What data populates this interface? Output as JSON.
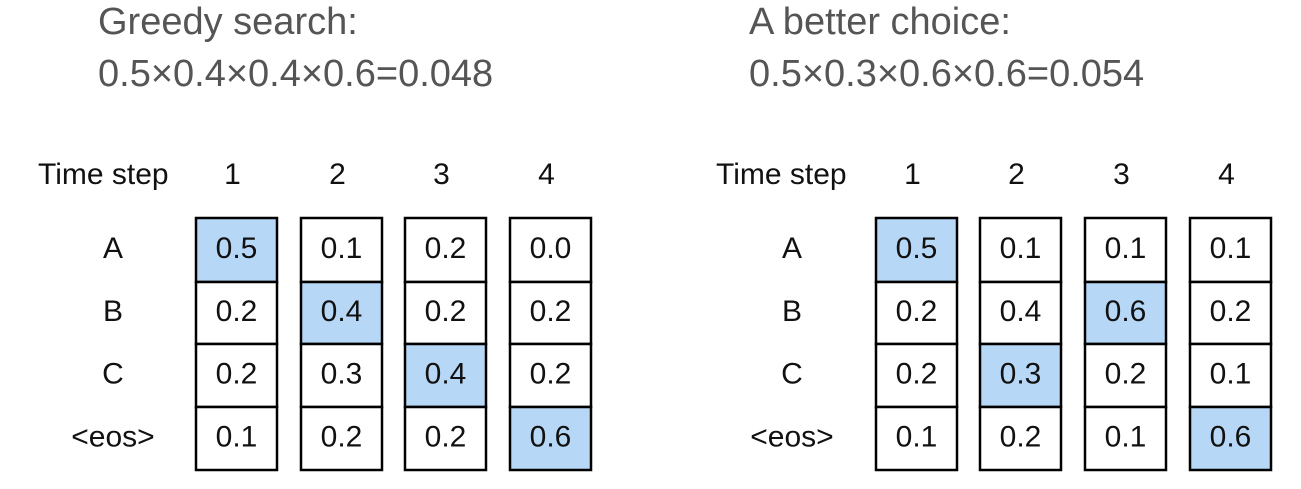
{
  "highlight_color": "#b7d7f7",
  "panels": [
    {
      "title": [
        "Greedy search:",
        "0.5×0.4×0.4×0.6=0.048"
      ],
      "header": "Time step",
      "rows": [
        "A",
        "B",
        "C",
        "<eos>"
      ],
      "steps": [
        {
          "label": "1",
          "cells": [
            "0.5",
            "0.2",
            "0.2",
            "0.1"
          ],
          "chosen": 0
        },
        {
          "label": "2",
          "cells": [
            "0.1",
            "0.4",
            "0.3",
            "0.2"
          ],
          "chosen": 1
        },
        {
          "label": "3",
          "cells": [
            "0.2",
            "0.2",
            "0.4",
            "0.2"
          ],
          "chosen": 2
        },
        {
          "label": "4",
          "cells": [
            "0.0",
            "0.2",
            "0.2",
            "0.6"
          ],
          "chosen": 3
        }
      ]
    },
    {
      "title": [
        "A better choice:",
        "0.5×0.3×0.6×0.6=0.054"
      ],
      "header": "Time step",
      "rows": [
        "A",
        "B",
        "C",
        "<eos>"
      ],
      "steps": [
        {
          "label": "1",
          "cells": [
            "0.5",
            "0.2",
            "0.2",
            "0.1"
          ],
          "chosen": 0
        },
        {
          "label": "2",
          "cells": [
            "0.1",
            "0.4",
            "0.3",
            "0.2"
          ],
          "chosen": 2
        },
        {
          "label": "3",
          "cells": [
            "0.1",
            "0.6",
            "0.2",
            "0.1"
          ],
          "chosen": 1
        },
        {
          "label": "4",
          "cells": [
            "0.1",
            "0.2",
            "0.1",
            "0.6"
          ],
          "chosen": 3
        }
      ]
    }
  ]
}
